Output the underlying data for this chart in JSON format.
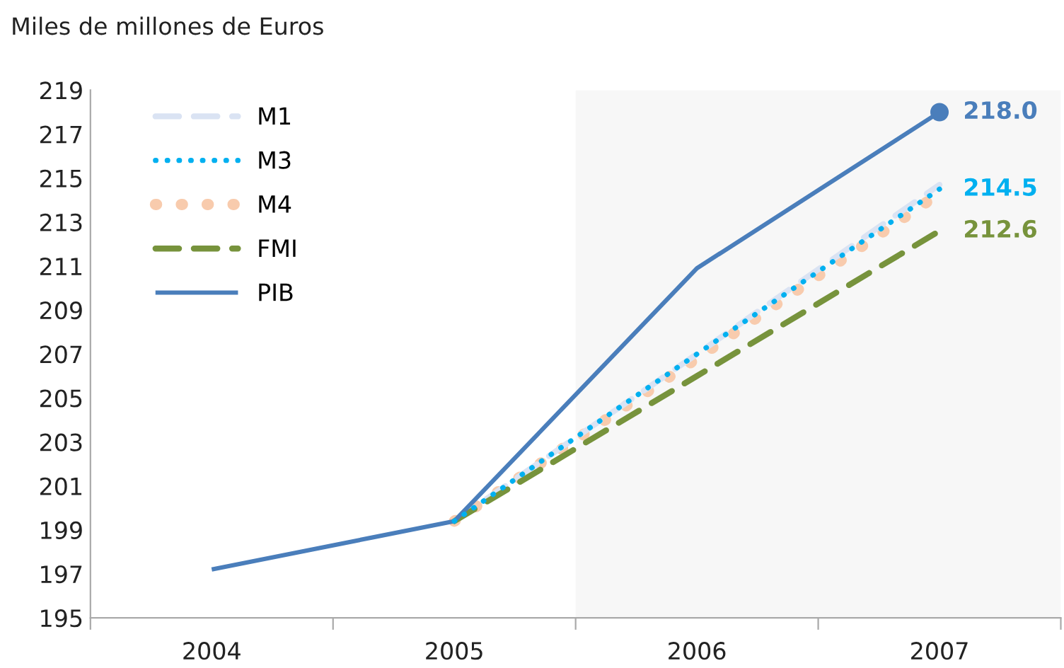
{
  "chart_data": {
    "type": "line",
    "ylabel": "Miles de millones de Euros",
    "x": [
      2004,
      2005,
      2006,
      2007
    ],
    "xlim": [
      2003.5,
      2007.5
    ],
    "xticks": [
      {
        "value": 2003.5,
        "label": null
      },
      {
        "value": 2004,
        "label": "2004"
      },
      {
        "value": 2004.5,
        "label": null
      },
      {
        "value": 2005,
        "label": "2005"
      },
      {
        "value": 2005.5,
        "label": null
      },
      {
        "value": 2006,
        "label": "2006"
      },
      {
        "value": 2006.5,
        "label": null
      },
      {
        "value": 2007,
        "label": "2007"
      },
      {
        "value": 2007.5,
        "label": null
      }
    ],
    "ylim": [
      195,
      219
    ],
    "yticks": [
      195,
      197,
      199,
      201,
      203,
      205,
      207,
      209,
      211,
      213,
      215,
      217,
      219
    ],
    "bands": [
      {
        "axis": "x",
        "from": 2005.5,
        "to": 2007.5,
        "color": "#f7f7f7"
      }
    ],
    "grid": false,
    "legend": "top left",
    "series": [
      {
        "name": "M1",
        "color": "#dae3f3",
        "line_style": "dashed",
        "values": [
          null,
          199.4,
          207.0,
          214.7
        ]
      },
      {
        "name": "M3",
        "color": "#00b0f0",
        "line_style": "dotted",
        "values": [
          null,
          199.4,
          207.0,
          214.5
        ],
        "value_labels": [
          null,
          null,
          null,
          "214.5"
        ]
      },
      {
        "name": "M4",
        "color": "#f8cbad",
        "line_style": "dotted",
        "values": [
          null,
          199.4,
          206.8,
          214.3
        ]
      },
      {
        "name": "FMI",
        "color": "#77933c",
        "line_style": "dashed",
        "values": [
          null,
          199.4,
          206.0,
          212.6
        ],
        "value_labels": [
          null,
          null,
          null,
          "212.6"
        ]
      },
      {
        "name": "PIB",
        "color": "#4a7ebb",
        "line_style": "solid",
        "values": [
          197.2,
          199.4,
          210.9,
          218.0
        ]
      },
      {
        "type": "scatter",
        "color": "#4a7ebb",
        "marker": "circle",
        "x": [
          2007
        ],
        "values": [
          218.0
        ],
        "value_labels": [
          "218.0"
        ]
      }
    ]
  }
}
